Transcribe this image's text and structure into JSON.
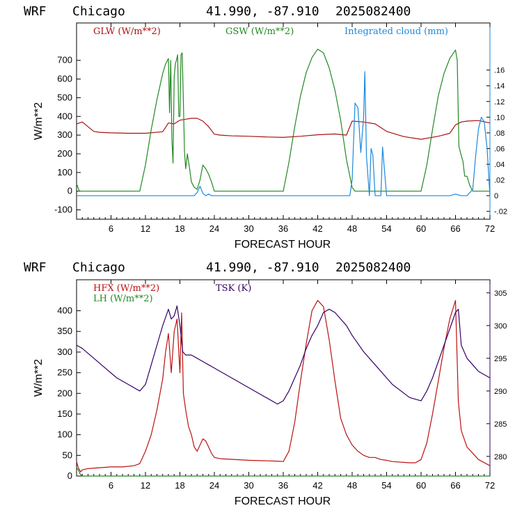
{
  "header": {
    "model": "WRF",
    "location": "Chicago",
    "coords": "41.990, -87.910",
    "run": "2025082400"
  },
  "colors": {
    "glw": "#aa1111",
    "gsw": "#228822",
    "cloud": "#1a88dd",
    "hfx": "#bb1111",
    "lh": "#228822",
    "tsk": "#330066"
  },
  "chart_data": [
    {
      "type": "line",
      "xlabel": "FORECAST HOUR",
      "ylabel": "W/m**2",
      "xlim": [
        0,
        72
      ],
      "ylim": [
        -150,
        900
      ],
      "yticks": [
        -100,
        0,
        100,
        200,
        300,
        400,
        500,
        600,
        700
      ],
      "xticks": [
        6,
        12,
        18,
        24,
        30,
        36,
        42,
        48,
        54,
        60,
        66,
        72
      ],
      "y2lim": [
        -0.03,
        0.22
      ],
      "y2ticks": [
        "-.02",
        "0",
        ".02",
        ".04",
        ".06",
        ".08",
        ".10",
        ".12",
        ".14",
        ".16"
      ],
      "legend_placement": "top",
      "series": [
        {
          "name": "GLW (W/m**2)",
          "color_key": "glw",
          "axis": "left",
          "x": [
            0,
            1,
            2,
            3,
            4,
            6,
            9,
            12,
            15,
            16,
            17,
            18,
            19,
            20,
            21,
            22,
            23,
            24,
            25,
            27,
            30,
            33,
            36,
            39,
            42,
            45,
            47,
            48,
            50,
            52,
            54,
            57,
            60,
            63,
            65,
            66,
            67,
            68,
            70,
            72
          ],
          "y": [
            360,
            370,
            345,
            320,
            315,
            312,
            310,
            310,
            318,
            365,
            360,
            380,
            385,
            390,
            390,
            375,
            345,
            305,
            300,
            296,
            294,
            290,
            288,
            294,
            302,
            306,
            300,
            375,
            370,
            360,
            320,
            292,
            278,
            294,
            310,
            355,
            370,
            375,
            378,
            365
          ]
        },
        {
          "name": "GSW (W/m**2)",
          "color_key": "gsw",
          "axis": "left",
          "x": [
            0,
            0.5,
            1,
            11,
            12,
            13,
            14,
            15,
            15.5,
            16,
            16.2,
            16.4,
            16.6,
            16.8,
            17,
            17.2,
            17.4,
            17.6,
            17.8,
            18,
            18.2,
            18.4,
            18.6,
            18.8,
            19,
            19.3,
            19.6,
            20,
            20.5,
            21,
            21.5,
            22,
            22.5,
            23,
            23.5,
            24,
            24.5,
            25,
            35,
            36,
            37,
            38,
            39,
            40,
            41,
            42,
            43,
            44,
            45,
            46,
            47,
            48,
            48.5,
            49,
            59,
            60,
            61,
            62,
            63,
            64,
            65,
            66,
            66.3,
            66.6,
            67,
            67.3,
            67.6,
            68,
            68.5,
            69,
            72
          ],
          "y": [
            40,
            0,
            0,
            0,
            140,
            330,
            490,
            630,
            680,
            710,
            420,
            700,
            280,
            150,
            610,
            680,
            700,
            730,
            400,
            400,
            730,
            740,
            480,
            210,
            120,
            200,
            140,
            50,
            20,
            10,
            60,
            140,
            120,
            90,
            50,
            0,
            0,
            0,
            0,
            0,
            155,
            345,
            510,
            635,
            715,
            760,
            740,
            660,
            540,
            380,
            170,
            20,
            0,
            0,
            0,
            0,
            140,
            330,
            510,
            630,
            710,
            755,
            700,
            240,
            190,
            160,
            80,
            80,
            30,
            0,
            0
          ]
        },
        {
          "name": "Integrated cloud (mm)",
          "color_key": "cloud",
          "axis": "right",
          "x": [
            0,
            20.5,
            21,
            21.5,
            22,
            22.5,
            23,
            23.5,
            47.6,
            48,
            48.5,
            49,
            49.5,
            50,
            50.2,
            50.5,
            51,
            51.3,
            51.6,
            52,
            53,
            53.3,
            53.6,
            54,
            65,
            66,
            67,
            68,
            69,
            69.5,
            70,
            70.5,
            71,
            71.5,
            72
          ],
          "y": [
            0,
            0,
            0.004,
            0.012,
            0.003,
            0,
            0.002,
            0,
            0,
            0.02,
            0.118,
            0.112,
            0.055,
            0.1,
            0.158,
            0.05,
            0,
            0.06,
            0.052,
            0,
            0,
            0.062,
            0.035,
            0,
            0,
            0.002,
            0,
            0,
            0.008,
            0.05,
            0.085,
            0.1,
            0.094,
            0.06,
            0
          ]
        }
      ]
    },
    {
      "type": "line",
      "xlabel": "FORECAST HOUR",
      "ylabel": "W/m**2",
      "xlim": [
        0,
        72
      ],
      "ylim": [
        0,
        475
      ],
      "yticks": [
        0,
        50,
        100,
        150,
        200,
        250,
        300,
        350,
        400
      ],
      "xticks": [
        6,
        12,
        18,
        24,
        30,
        36,
        42,
        48,
        54,
        60,
        66,
        72
      ],
      "y2lim": [
        277,
        307
      ],
      "y2ticks": [
        280,
        285,
        290,
        295,
        300,
        305
      ],
      "legend_placement": "top-left",
      "series": [
        {
          "name": "HFX (W/m**2)",
          "color_key": "hfx",
          "axis": "left",
          "x": [
            0,
            0.3,
            0.7,
            1,
            2,
            4,
            6,
            8,
            10,
            11,
            12,
            13,
            14,
            15,
            15.5,
            16,
            16.5,
            17,
            17.5,
            18,
            18.3,
            18.6,
            19,
            19.5,
            20,
            20.5,
            21,
            21.5,
            22,
            22.5,
            23,
            23.5,
            24,
            25,
            30,
            35,
            36,
            37,
            38,
            39,
            40,
            41,
            42,
            43,
            44,
            45,
            46,
            47,
            48,
            49,
            50,
            51,
            52,
            53,
            54,
            55,
            58,
            59,
            60,
            61,
            62,
            63,
            64,
            65,
            66,
            66.5,
            67,
            67.5,
            68,
            69,
            70,
            72
          ],
          "y": [
            35,
            20,
            10,
            15,
            18,
            20,
            22,
            22,
            25,
            30,
            60,
            100,
            160,
            235,
            300,
            345,
            250,
            350,
            380,
            250,
            395,
            200,
            160,
            120,
            100,
            70,
            60,
            75,
            90,
            85,
            70,
            55,
            45,
            42,
            38,
            36,
            35,
            60,
            130,
            230,
            320,
            400,
            425,
            410,
            330,
            230,
            140,
            100,
            75,
            60,
            50,
            45,
            45,
            40,
            38,
            35,
            32,
            32,
            40,
            80,
            150,
            230,
            310,
            380,
            425,
            180,
            110,
            90,
            70,
            55,
            40,
            25
          ]
        },
        {
          "name": "LH (W/m**2)",
          "color_key": "lh",
          "axis": "left",
          "x": [
            0,
            0.3,
            0.6,
            1,
            72
          ],
          "y": [
            20,
            15,
            5,
            0,
            0
          ]
        },
        {
          "name": "TSK (K)",
          "color_key": "tsk",
          "axis": "right",
          "x": [
            0,
            1,
            3,
            5,
            7,
            9,
            11,
            12,
            13,
            14,
            15,
            16,
            16.5,
            17,
            17.5,
            18,
            18.5,
            19,
            20,
            21,
            22,
            23,
            24,
            25,
            27,
            30,
            33,
            35,
            36,
            37,
            38,
            39,
            40,
            41,
            42,
            43,
            44,
            45,
            46,
            47,
            48,
            50,
            52,
            55,
            58,
            60,
            61,
            62,
            63,
            64,
            65,
            66,
            66.5,
            67,
            68,
            69,
            70,
            72
          ],
          "y": [
            297,
            296.5,
            295,
            293.5,
            292,
            291,
            290,
            291,
            294,
            297,
            300,
            302.5,
            301,
            301.5,
            303,
            300,
            296,
            295.5,
            295.5,
            295,
            294.5,
            294,
            293.5,
            293,
            292,
            290.5,
            289,
            288,
            288.5,
            290,
            292,
            294,
            296.5,
            298.5,
            300,
            302,
            302.5,
            302,
            301,
            300,
            298.5,
            296,
            294,
            291,
            289,
            288.5,
            290,
            292,
            294.5,
            297,
            299.5,
            302,
            302.5,
            297,
            295,
            294,
            293,
            292
          ]
        }
      ]
    }
  ]
}
